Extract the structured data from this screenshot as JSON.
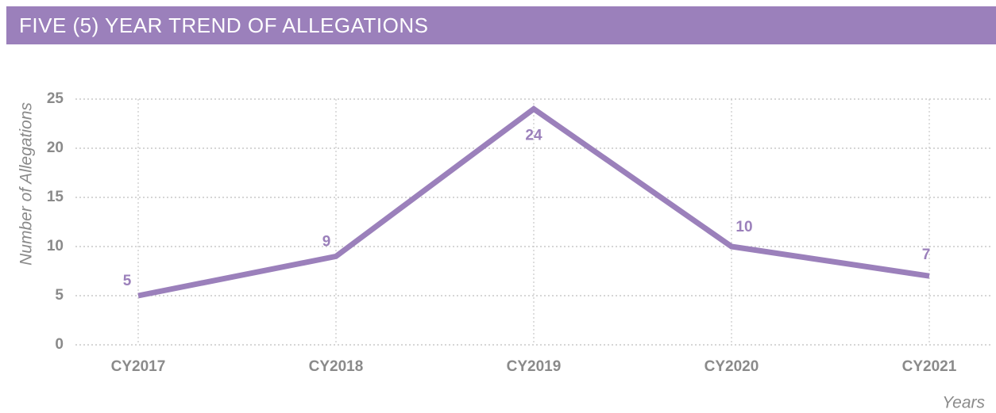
{
  "chart_data": {
    "type": "line",
    "title": "FIVE (5) YEAR TREND OF ALLEGATIONS",
    "y_label": "Number of Allegations",
    "x_label": "Years",
    "categories": [
      "CY2017",
      "CY2018",
      "CY2019",
      "CY2020",
      "CY2021"
    ],
    "values": [
      5,
      9,
      24,
      10,
      7
    ],
    "color": "#9b80bb",
    "ylim": [
      0,
      25
    ],
    "yticks": [
      0,
      5,
      10,
      15,
      20,
      25
    ],
    "grid": true
  }
}
